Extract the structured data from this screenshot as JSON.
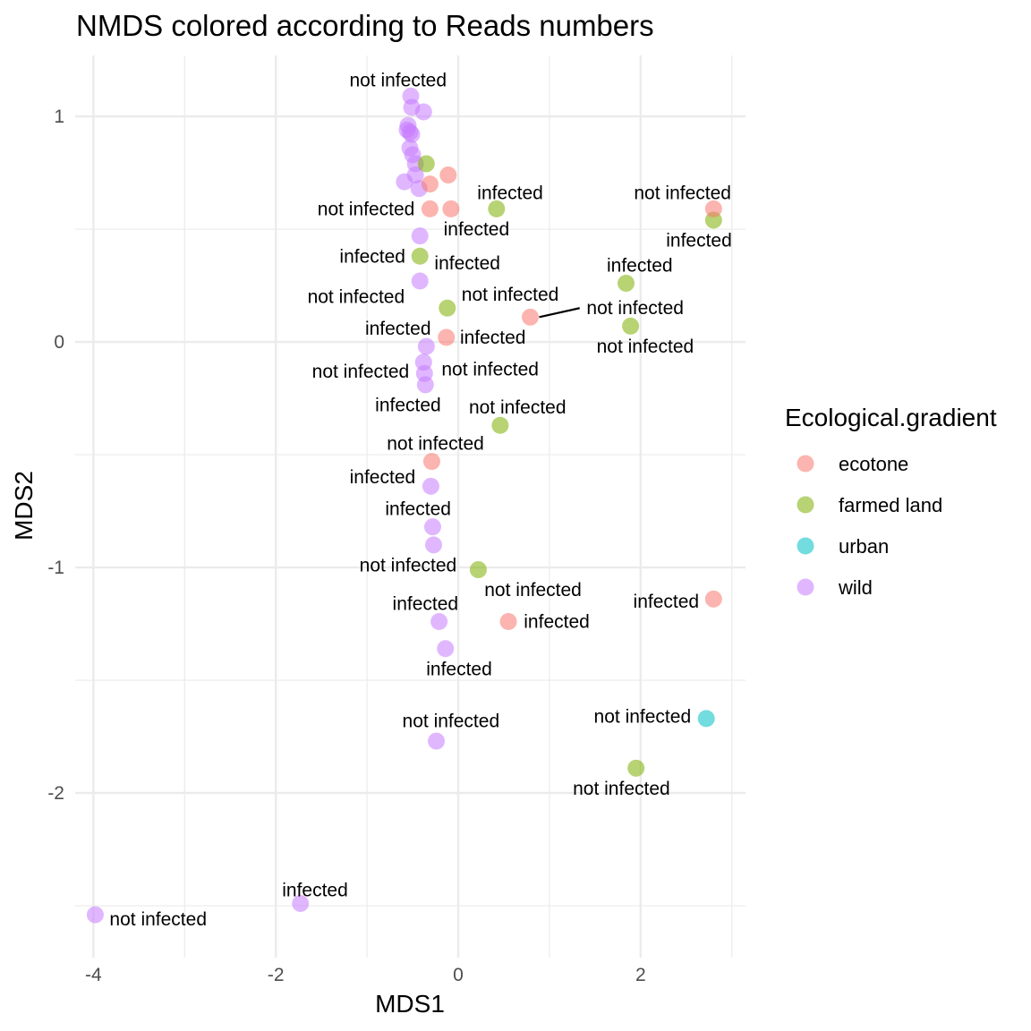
{
  "chart_data": {
    "type": "scatter",
    "title": "NMDS colored according to Reads numbers",
    "xlabel": "MDS1",
    "ylabel": "MDS2",
    "xlim": [
      -4.2,
      3.15
    ],
    "ylim": [
      -2.73,
      1.27
    ],
    "x_ticks": [
      -4,
      -2,
      0,
      2
    ],
    "x_tick_labels": [
      "-4",
      "-2",
      "0",
      "2"
    ],
    "y_ticks": [
      1,
      0,
      -1,
      -2
    ],
    "y_tick_labels": [
      "1",
      "0",
      "-1",
      "-2"
    ],
    "grid": true,
    "legend": {
      "title": "Ecological.gradient",
      "position": "right",
      "entries": [
        {
          "key": "ecotone",
          "label": "ecotone",
          "color": "#F8766D"
        },
        {
          "key": "farmed",
          "label": "farmed land",
          "color": "#7CAE00"
        },
        {
          "key": "urban",
          "label": "urban",
          "color": "#00BFC4"
        },
        {
          "key": "wild",
          "label": "wild",
          "color": "#C77CFF"
        }
      ]
    },
    "points": [
      {
        "x": -0.52,
        "y": 1.09,
        "group": "wild"
      },
      {
        "x": -0.51,
        "y": 1.04,
        "group": "wild"
      },
      {
        "x": -0.38,
        "y": 1.02,
        "group": "wild"
      },
      {
        "x": -0.55,
        "y": 0.96,
        "group": "wild"
      },
      {
        "x": -0.56,
        "y": 0.94,
        "group": "wild"
      },
      {
        "x": -0.53,
        "y": 0.93,
        "group": "wild"
      },
      {
        "x": -0.51,
        "y": 0.92,
        "group": "wild"
      },
      {
        "x": -0.53,
        "y": 0.86,
        "group": "wild"
      },
      {
        "x": -0.5,
        "y": 0.83,
        "group": "wild"
      },
      {
        "x": -0.47,
        "y": 0.79,
        "group": "wild"
      },
      {
        "x": -0.47,
        "y": 0.74,
        "group": "wild"
      },
      {
        "x": -0.59,
        "y": 0.71,
        "group": "wild"
      },
      {
        "x": -0.43,
        "y": 0.68,
        "group": "wild"
      },
      {
        "x": -0.42,
        "y": 0.47,
        "group": "wild"
      },
      {
        "x": -0.42,
        "y": 0.27,
        "group": "wild"
      },
      {
        "x": -0.35,
        "y": -0.02,
        "group": "wild"
      },
      {
        "x": -0.38,
        "y": -0.09,
        "group": "wild"
      },
      {
        "x": -0.37,
        "y": -0.14,
        "group": "wild"
      },
      {
        "x": -0.36,
        "y": -0.19,
        "group": "wild"
      },
      {
        "x": -0.3,
        "y": -0.64,
        "group": "wild"
      },
      {
        "x": -0.28,
        "y": -0.82,
        "group": "wild"
      },
      {
        "x": -0.27,
        "y": -0.9,
        "group": "wild"
      },
      {
        "x": -0.21,
        "y": -1.24,
        "group": "wild"
      },
      {
        "x": -0.14,
        "y": -1.36,
        "group": "wild"
      },
      {
        "x": -0.24,
        "y": -1.77,
        "group": "wild"
      },
      {
        "x": -1.73,
        "y": -2.49,
        "group": "wild"
      },
      {
        "x": -3.98,
        "y": -2.54,
        "group": "wild"
      },
      {
        "x": -0.35,
        "y": 0.79,
        "group": "farmed"
      },
      {
        "x": -0.42,
        "y": 0.38,
        "group": "farmed"
      },
      {
        "x": 0.42,
        "y": 0.59,
        "group": "farmed"
      },
      {
        "x": -0.12,
        "y": 0.15,
        "group": "farmed"
      },
      {
        "x": 0.46,
        "y": -0.37,
        "group": "farmed"
      },
      {
        "x": 0.22,
        "y": -1.01,
        "group": "farmed"
      },
      {
        "x": 1.84,
        "y": 0.26,
        "group": "farmed"
      },
      {
        "x": 1.89,
        "y": 0.07,
        "group": "farmed"
      },
      {
        "x": 2.8,
        "y": 0.54,
        "group": "farmed"
      },
      {
        "x": 1.95,
        "y": -1.89,
        "group": "farmed"
      },
      {
        "x": -0.11,
        "y": 0.74,
        "group": "ecotone"
      },
      {
        "x": -0.31,
        "y": 0.7,
        "group": "ecotone"
      },
      {
        "x": -0.31,
        "y": 0.59,
        "group": "ecotone"
      },
      {
        "x": -0.08,
        "y": 0.59,
        "group": "ecotone"
      },
      {
        "x": 0.79,
        "y": 0.11,
        "group": "ecotone"
      },
      {
        "x": -0.13,
        "y": 0.02,
        "group": "ecotone"
      },
      {
        "x": -0.29,
        "y": -0.53,
        "group": "ecotone"
      },
      {
        "x": 0.55,
        "y": -1.24,
        "group": "ecotone"
      },
      {
        "x": 2.8,
        "y": 0.59,
        "group": "ecotone"
      },
      {
        "x": 2.8,
        "y": -1.14,
        "group": "ecotone"
      },
      {
        "x": 2.72,
        "y": -1.67,
        "group": "urban"
      }
    ],
    "annotations": [
      {
        "text": "not infected",
        "x": -0.66,
        "y": 1.16
      },
      {
        "text": "infected",
        "x": 0.57,
        "y": 0.66
      },
      {
        "text": "not infected",
        "x": 2.46,
        "y": 0.66
      },
      {
        "text": "not infected",
        "x": -1.01,
        "y": 0.59
      },
      {
        "text": "infected",
        "x": 0.2,
        "y": 0.5
      },
      {
        "text": "infected",
        "x": 2.64,
        "y": 0.45
      },
      {
        "text": "infected",
        "x": -0.94,
        "y": 0.38
      },
      {
        "text": "infected",
        "x": 0.1,
        "y": 0.35
      },
      {
        "text": "infected",
        "x": 1.99,
        "y": 0.34
      },
      {
        "text": "not infected",
        "x": -1.12,
        "y": 0.2
      },
      {
        "text": "not infected",
        "x": 0.57,
        "y": 0.21
      },
      {
        "text": "not infected",
        "x": 1.94,
        "y": 0.15,
        "leader_to_x": 0.79,
        "leader_to_y": 0.11
      },
      {
        "text": "infected",
        "x": -0.66,
        "y": 0.06
      },
      {
        "text": "infected",
        "x": 0.38,
        "y": 0.02
      },
      {
        "text": "not infected",
        "x": 2.05,
        "y": -0.02
      },
      {
        "text": "not infected",
        "x": -1.07,
        "y": -0.13
      },
      {
        "text": "not infected",
        "x": 0.35,
        "y": -0.12
      },
      {
        "text": "infected",
        "x": -0.55,
        "y": -0.28
      },
      {
        "text": "not infected",
        "x": 0.65,
        "y": -0.29
      },
      {
        "text": "not infected",
        "x": -0.25,
        "y": -0.45
      },
      {
        "text": "infected",
        "x": -0.83,
        "y": -0.6
      },
      {
        "text": "infected",
        "x": -0.44,
        "y": -0.74
      },
      {
        "text": "not infected",
        "x": -0.55,
        "y": -0.99
      },
      {
        "text": "not infected",
        "x": 0.82,
        "y": -1.1
      },
      {
        "text": "infected",
        "x": -0.36,
        "y": -1.16
      },
      {
        "text": "infected",
        "x": 2.28,
        "y": -1.15
      },
      {
        "text": "infected",
        "x": 1.08,
        "y": -1.24
      },
      {
        "text": "infected",
        "x": 0.01,
        "y": -1.45
      },
      {
        "text": "not infected",
        "x": -0.08,
        "y": -1.68
      },
      {
        "text": "not infected",
        "x": 2.02,
        "y": -1.66
      },
      {
        "text": "not infected",
        "x": 1.79,
        "y": -1.98
      },
      {
        "text": "infected",
        "x": -1.57,
        "y": -2.43
      },
      {
        "text": "not infected",
        "x": -3.29,
        "y": -2.56
      }
    ]
  }
}
